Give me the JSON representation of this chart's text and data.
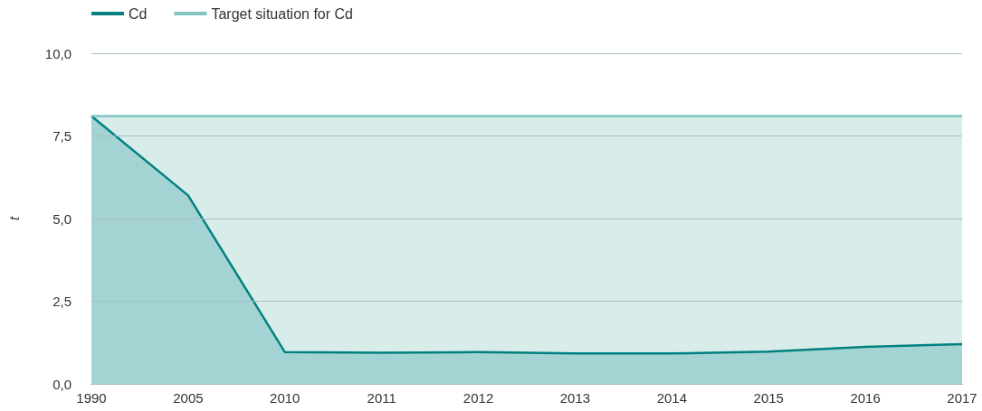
{
  "chart_data": {
    "type": "area",
    "ylabel": "t",
    "categories": [
      "1990",
      "2005",
      "2010",
      "2011",
      "2012",
      "2013",
      "2014",
      "2015",
      "2016",
      "2017"
    ],
    "series": [
      {
        "name": "Cd",
        "color": "#00817f",
        "values": [
          8.1,
          5.7,
          0.96,
          0.94,
          0.96,
          0.92,
          0.92,
          0.98,
          1.12,
          1.2
        ]
      },
      {
        "name": "Target situation for Cd",
        "color": "#7fc4c0",
        "values": [
          8.1,
          8.1,
          8.1,
          8.1,
          8.1,
          8.1,
          8.1,
          8.1,
          8.1,
          8.1
        ]
      }
    ],
    "ylim": [
      0,
      10
    ],
    "yticks": [
      {
        "value": 0,
        "label": "0,0"
      },
      {
        "value": 2.5,
        "label": "2,5"
      },
      {
        "value": 5,
        "label": "5,0"
      },
      {
        "value": 7.5,
        "label": "7,5"
      },
      {
        "value": 10,
        "label": "10,0"
      }
    ],
    "grid": "y",
    "legend": "top left",
    "marker": "none"
  }
}
